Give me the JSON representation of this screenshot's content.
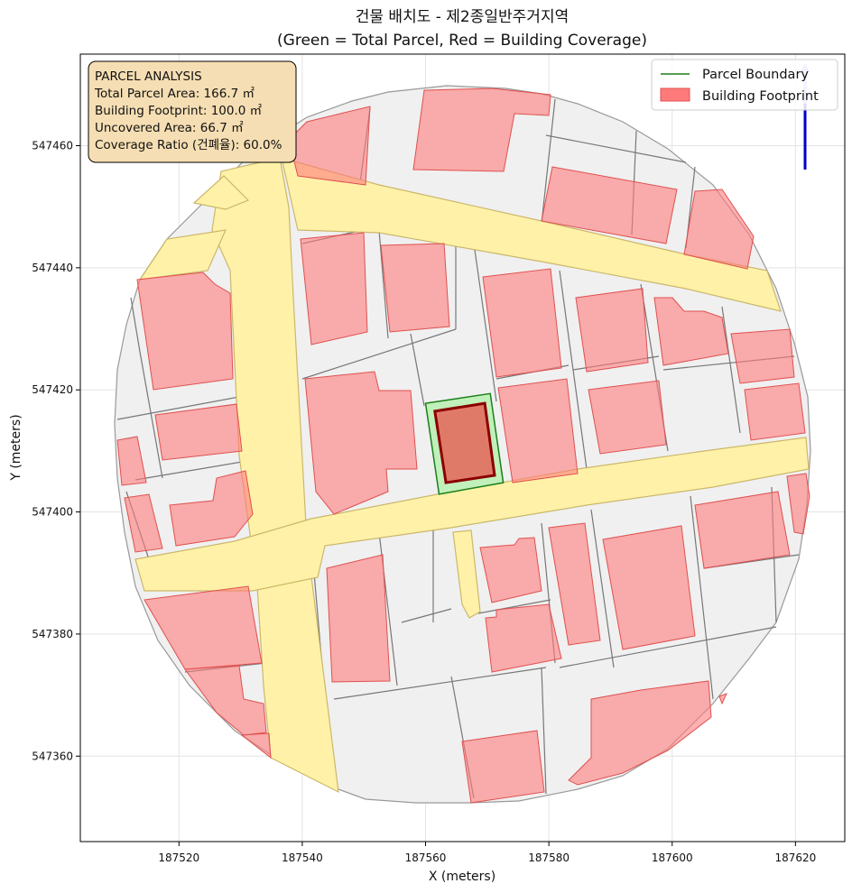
{
  "chart_data": {
    "type": "map",
    "title_line1": "건물 배치도 - 제2종일반주거지역",
    "title_line2": "(Green = Total Parcel, Red = Building Coverage)",
    "xlabel": "X (meters)",
    "ylabel": "Y (meters)",
    "xlim": [
      187504,
      187628
    ],
    "ylim": [
      547346,
      547475
    ],
    "xticks": [
      187520,
      187540,
      187560,
      187580,
      187600,
      187620
    ],
    "yticks": [
      547360,
      547380,
      547400,
      547420,
      547440,
      547460
    ],
    "grid": true,
    "legend_position": "top-right",
    "legend": [
      {
        "label": "Parcel Boundary",
        "type": "line",
        "color": "#1a7f1a"
      },
      {
        "label": "Building Footprint",
        "type": "patch",
        "color": "#ff7b7b"
      }
    ],
    "info_box_lines": [
      "PARCEL ANALYSIS",
      "Total Parcel Area: 166.7 ㎡",
      "Building Footprint: 100.0 ㎡",
      "Uncovered Area: 66.7 ㎡",
      "Coverage Ratio (건폐율): 60.0%"
    ],
    "parcel": {
      "total_area_m2": 166.7,
      "building_footprint_m2": 100.0,
      "uncovered_area_m2": 66.7,
      "coverage_ratio_pct": 60.0,
      "boundary": [
        [
          187560.0,
          547417.8
        ],
        [
          187570.5,
          547419.4
        ],
        [
          187572.6,
          547404.8
        ],
        [
          187562.2,
          547402.9
        ]
      ],
      "footprint": [
        [
          187561.5,
          547416.5
        ],
        [
          187569.6,
          547417.8
        ],
        [
          187571.2,
          547406.0
        ],
        [
          187563.3,
          547404.8
        ]
      ]
    },
    "colors": {
      "parcel_fill": "#b8f0b0",
      "parcel_edge": "#1a7f1a",
      "building_fill": "#ff7b7b",
      "target_building_fill": "#e07a68",
      "target_building_edge": "#8b0000",
      "road_fill": "#fff2a8",
      "road_edge": "#c8b060",
      "lot_fill": "#f0f0f0",
      "lot_edge": "#777777",
      "north_arrow": "#0000cc",
      "info_box_fill": "#f5deb3"
    }
  }
}
